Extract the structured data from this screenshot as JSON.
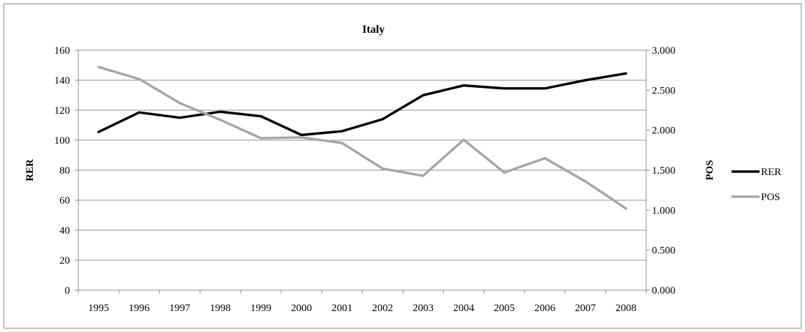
{
  "chart_data": {
    "type": "line",
    "title": "Italy",
    "categories": [
      "1995",
      "1996",
      "1997",
      "1998",
      "1999",
      "2000",
      "2001",
      "2002",
      "2003",
      "2004",
      "2005",
      "2006",
      "2007",
      "2008"
    ],
    "y_left": {
      "label": "RER",
      "range": [
        0,
        160
      ],
      "ticks": [
        "0",
        "20",
        "40",
        "60",
        "80",
        "100",
        "120",
        "140",
        "160"
      ]
    },
    "y_right": {
      "label": "POS",
      "range": [
        0,
        3
      ],
      "ticks": [
        "0.000",
        "0.500",
        "1.000",
        "1.500",
        "2.000",
        "2.500",
        "3.000"
      ]
    },
    "grid": true,
    "legend_position": "right",
    "series": [
      {
        "name": "RER",
        "axis": "left",
        "color": "#000000",
        "values": [
          105.5,
          118.5,
          115,
          119,
          116,
          103.5,
          106,
          114,
          130,
          136.5,
          134.5,
          134.5,
          140,
          144.5
        ]
      },
      {
        "name": "POS",
        "axis": "right",
        "color": "#a6a6a6",
        "values": [
          2.79,
          2.64,
          2.34,
          2.13,
          1.9,
          1.91,
          1.84,
          1.52,
          1.43,
          1.88,
          1.47,
          1.65,
          1.36,
          1.02
        ]
      }
    ]
  }
}
